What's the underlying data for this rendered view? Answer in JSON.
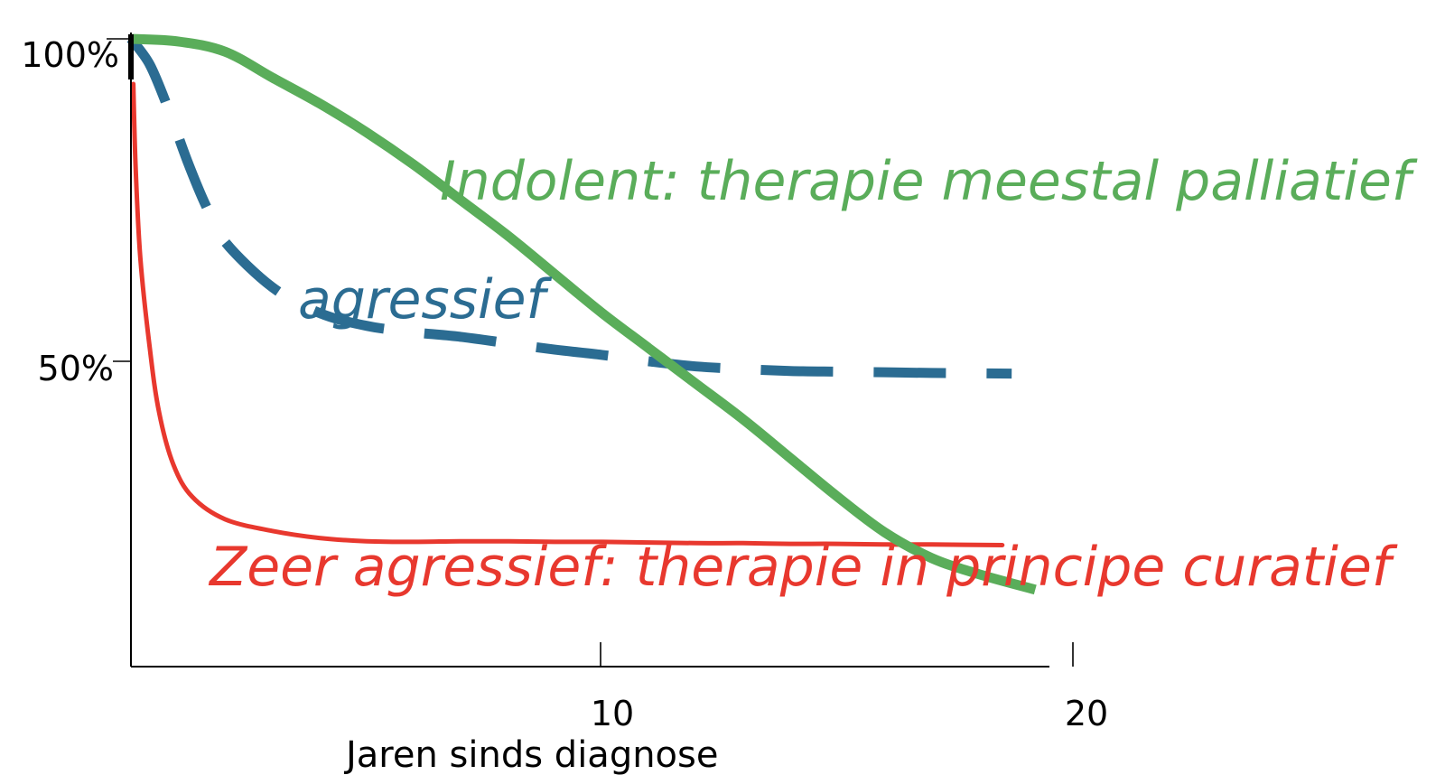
{
  "chart_data": {
    "type": "line",
    "xlabel": "Jaren sinds diagnose",
    "ylabel": "",
    "x_ticks": [
      {
        "value": 10,
        "label": "10"
      },
      {
        "value": 20,
        "label": "20"
      }
    ],
    "y_ticks": [
      {
        "value": 100,
        "label": "100%"
      },
      {
        "value": 50,
        "label": "50%"
      }
    ],
    "xlim": [
      0,
      20
    ],
    "ylim": [
      0,
      100
    ],
    "grid": false,
    "series": [
      {
        "key": "indolent",
        "label": "Indolent: therapie meestal palliatief",
        "color": "#5aad5a",
        "style": "solid",
        "points": [
          [
            0,
            100
          ],
          [
            1,
            99.6
          ],
          [
            2,
            98
          ],
          [
            3,
            94
          ],
          [
            4,
            90
          ],
          [
            5,
            85.5
          ],
          [
            6,
            80.5
          ],
          [
            7,
            75
          ],
          [
            8,
            69.5
          ],
          [
            9,
            63.5
          ],
          [
            10,
            57.5
          ],
          [
            11,
            52
          ],
          [
            12,
            46.5
          ],
          [
            13,
            41
          ],
          [
            14,
            35
          ],
          [
            15,
            29
          ],
          [
            16,
            23.5
          ],
          [
            17,
            19.5
          ],
          [
            18,
            17
          ],
          [
            19.2,
            14.6
          ]
        ]
      },
      {
        "key": "agressief",
        "label": "agressief",
        "color": "#2b6c92",
        "style": "dashed",
        "points": [
          [
            0,
            100
          ],
          [
            0.4,
            96
          ],
          [
            0.8,
            89
          ],
          [
            1.2,
            81
          ],
          [
            1.6,
            74
          ],
          [
            2,
            68.5
          ],
          [
            3,
            61.5
          ],
          [
            4,
            57.5
          ],
          [
            5,
            55.5
          ],
          [
            6,
            54.5
          ],
          [
            7,
            53.8
          ],
          [
            8,
            52.8
          ],
          [
            9,
            51.8
          ],
          [
            10,
            51
          ],
          [
            11,
            50
          ],
          [
            12,
            49.2
          ],
          [
            13,
            48.8
          ],
          [
            14,
            48.5
          ],
          [
            15,
            48.4
          ],
          [
            16,
            48.3
          ],
          [
            17,
            48.2
          ],
          [
            18.7,
            48.1
          ]
        ]
      },
      {
        "key": "zeer_agressief",
        "label": "Zeer agressief: therapie in principe curatief",
        "color": "#e8382e",
        "style": "solid",
        "points": [
          [
            0.05,
            93
          ],
          [
            0.1,
            80
          ],
          [
            0.2,
            66
          ],
          [
            0.4,
            52
          ],
          [
            0.6,
            42
          ],
          [
            0.9,
            34
          ],
          [
            1.3,
            29
          ],
          [
            2,
            25.5
          ],
          [
            3,
            23.7
          ],
          [
            4,
            22.6
          ],
          [
            5,
            22.1
          ],
          [
            6,
            22
          ],
          [
            7,
            22.1
          ],
          [
            8,
            22.1
          ],
          [
            9,
            22
          ],
          [
            10,
            22
          ],
          [
            11,
            21.9
          ],
          [
            12,
            21.8
          ],
          [
            13,
            21.8
          ],
          [
            14,
            21.7
          ],
          [
            15,
            21.7
          ],
          [
            16,
            21.6
          ],
          [
            17,
            21.6
          ],
          [
            18.5,
            21.5
          ]
        ]
      }
    ]
  }
}
